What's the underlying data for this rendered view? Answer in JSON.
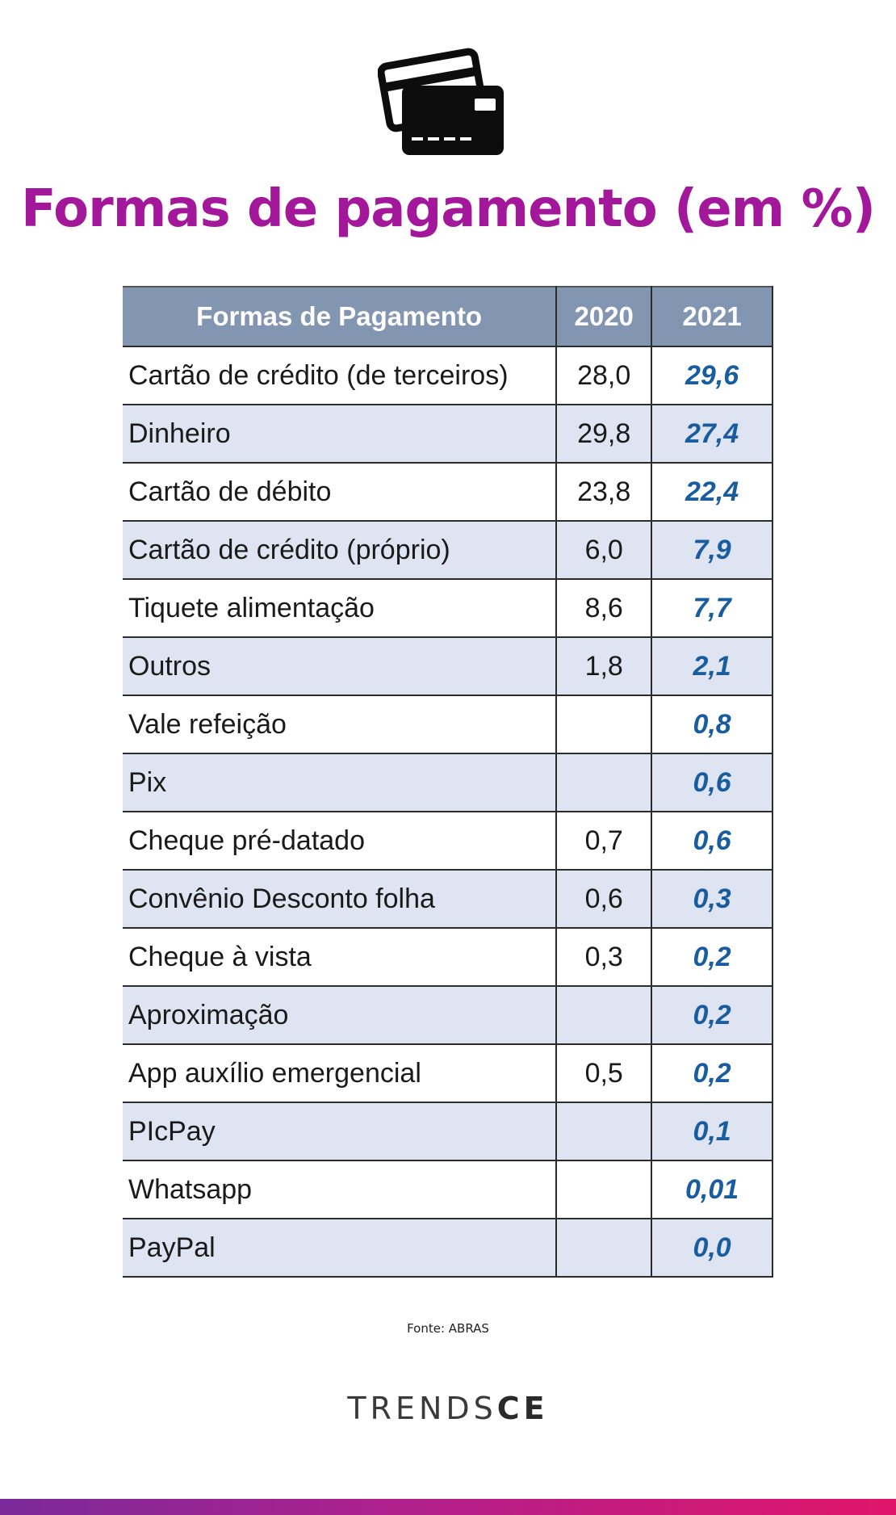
{
  "icon": "credit-cards-icon",
  "title": "Formas de pagamento (em %)",
  "chart_data": {
    "type": "table",
    "columns": [
      "Formas de Pagamento",
      "2020",
      "2021"
    ],
    "rows": [
      {
        "label": "Cartão de crédito (de terceiros)",
        "y2020": "28,0",
        "y2021": "29,6"
      },
      {
        "label": "Dinheiro",
        "y2020": "29,8",
        "y2021": "27,4"
      },
      {
        "label": "Cartão de débito",
        "y2020": "23,8",
        "y2021": "22,4"
      },
      {
        "label": "Cartão de crédito (próprio)",
        "y2020": "6,0",
        "y2021": "7,9"
      },
      {
        "label": "Tiquete alimentação",
        "y2020": "8,6",
        "y2021": "7,7"
      },
      {
        "label": "Outros",
        "y2020": "1,8",
        "y2021": "2,1"
      },
      {
        "label": "Vale refeição",
        "y2020": "",
        "y2021": "0,8"
      },
      {
        "label": "Pix",
        "y2020": "",
        "y2021": "0,6"
      },
      {
        "label": "Cheque pré-datado",
        "y2020": "0,7",
        "y2021": "0,6"
      },
      {
        "label": "Convênio Desconto folha",
        "y2020": "0,6",
        "y2021": "0,3"
      },
      {
        "label": "Cheque à vista",
        "y2020": "0,3",
        "y2021": "0,2"
      },
      {
        "label": "Aproximação",
        "y2020": "",
        "y2021": "0,2"
      },
      {
        "label": "App auxílio emergencial",
        "y2020": "0,5",
        "y2021": "0,2"
      },
      {
        "label": "PIcPay",
        "y2020": "",
        "y2021": "0,1"
      },
      {
        "label": "Whatsapp",
        "y2020": "",
        "y2021": "0,01"
      },
      {
        "label": "PayPal",
        "y2020": "",
        "y2021": "0,0"
      }
    ]
  },
  "colors": {
    "title": "#a3179a",
    "header_bg": "#8396b1",
    "alt_row_bg": "#dfe4f2",
    "value_2021": "#1a5d9e"
  },
  "source": "Fonte: ABRAS",
  "brand": {
    "part1": "TRENDS",
    "part2": "CE"
  }
}
